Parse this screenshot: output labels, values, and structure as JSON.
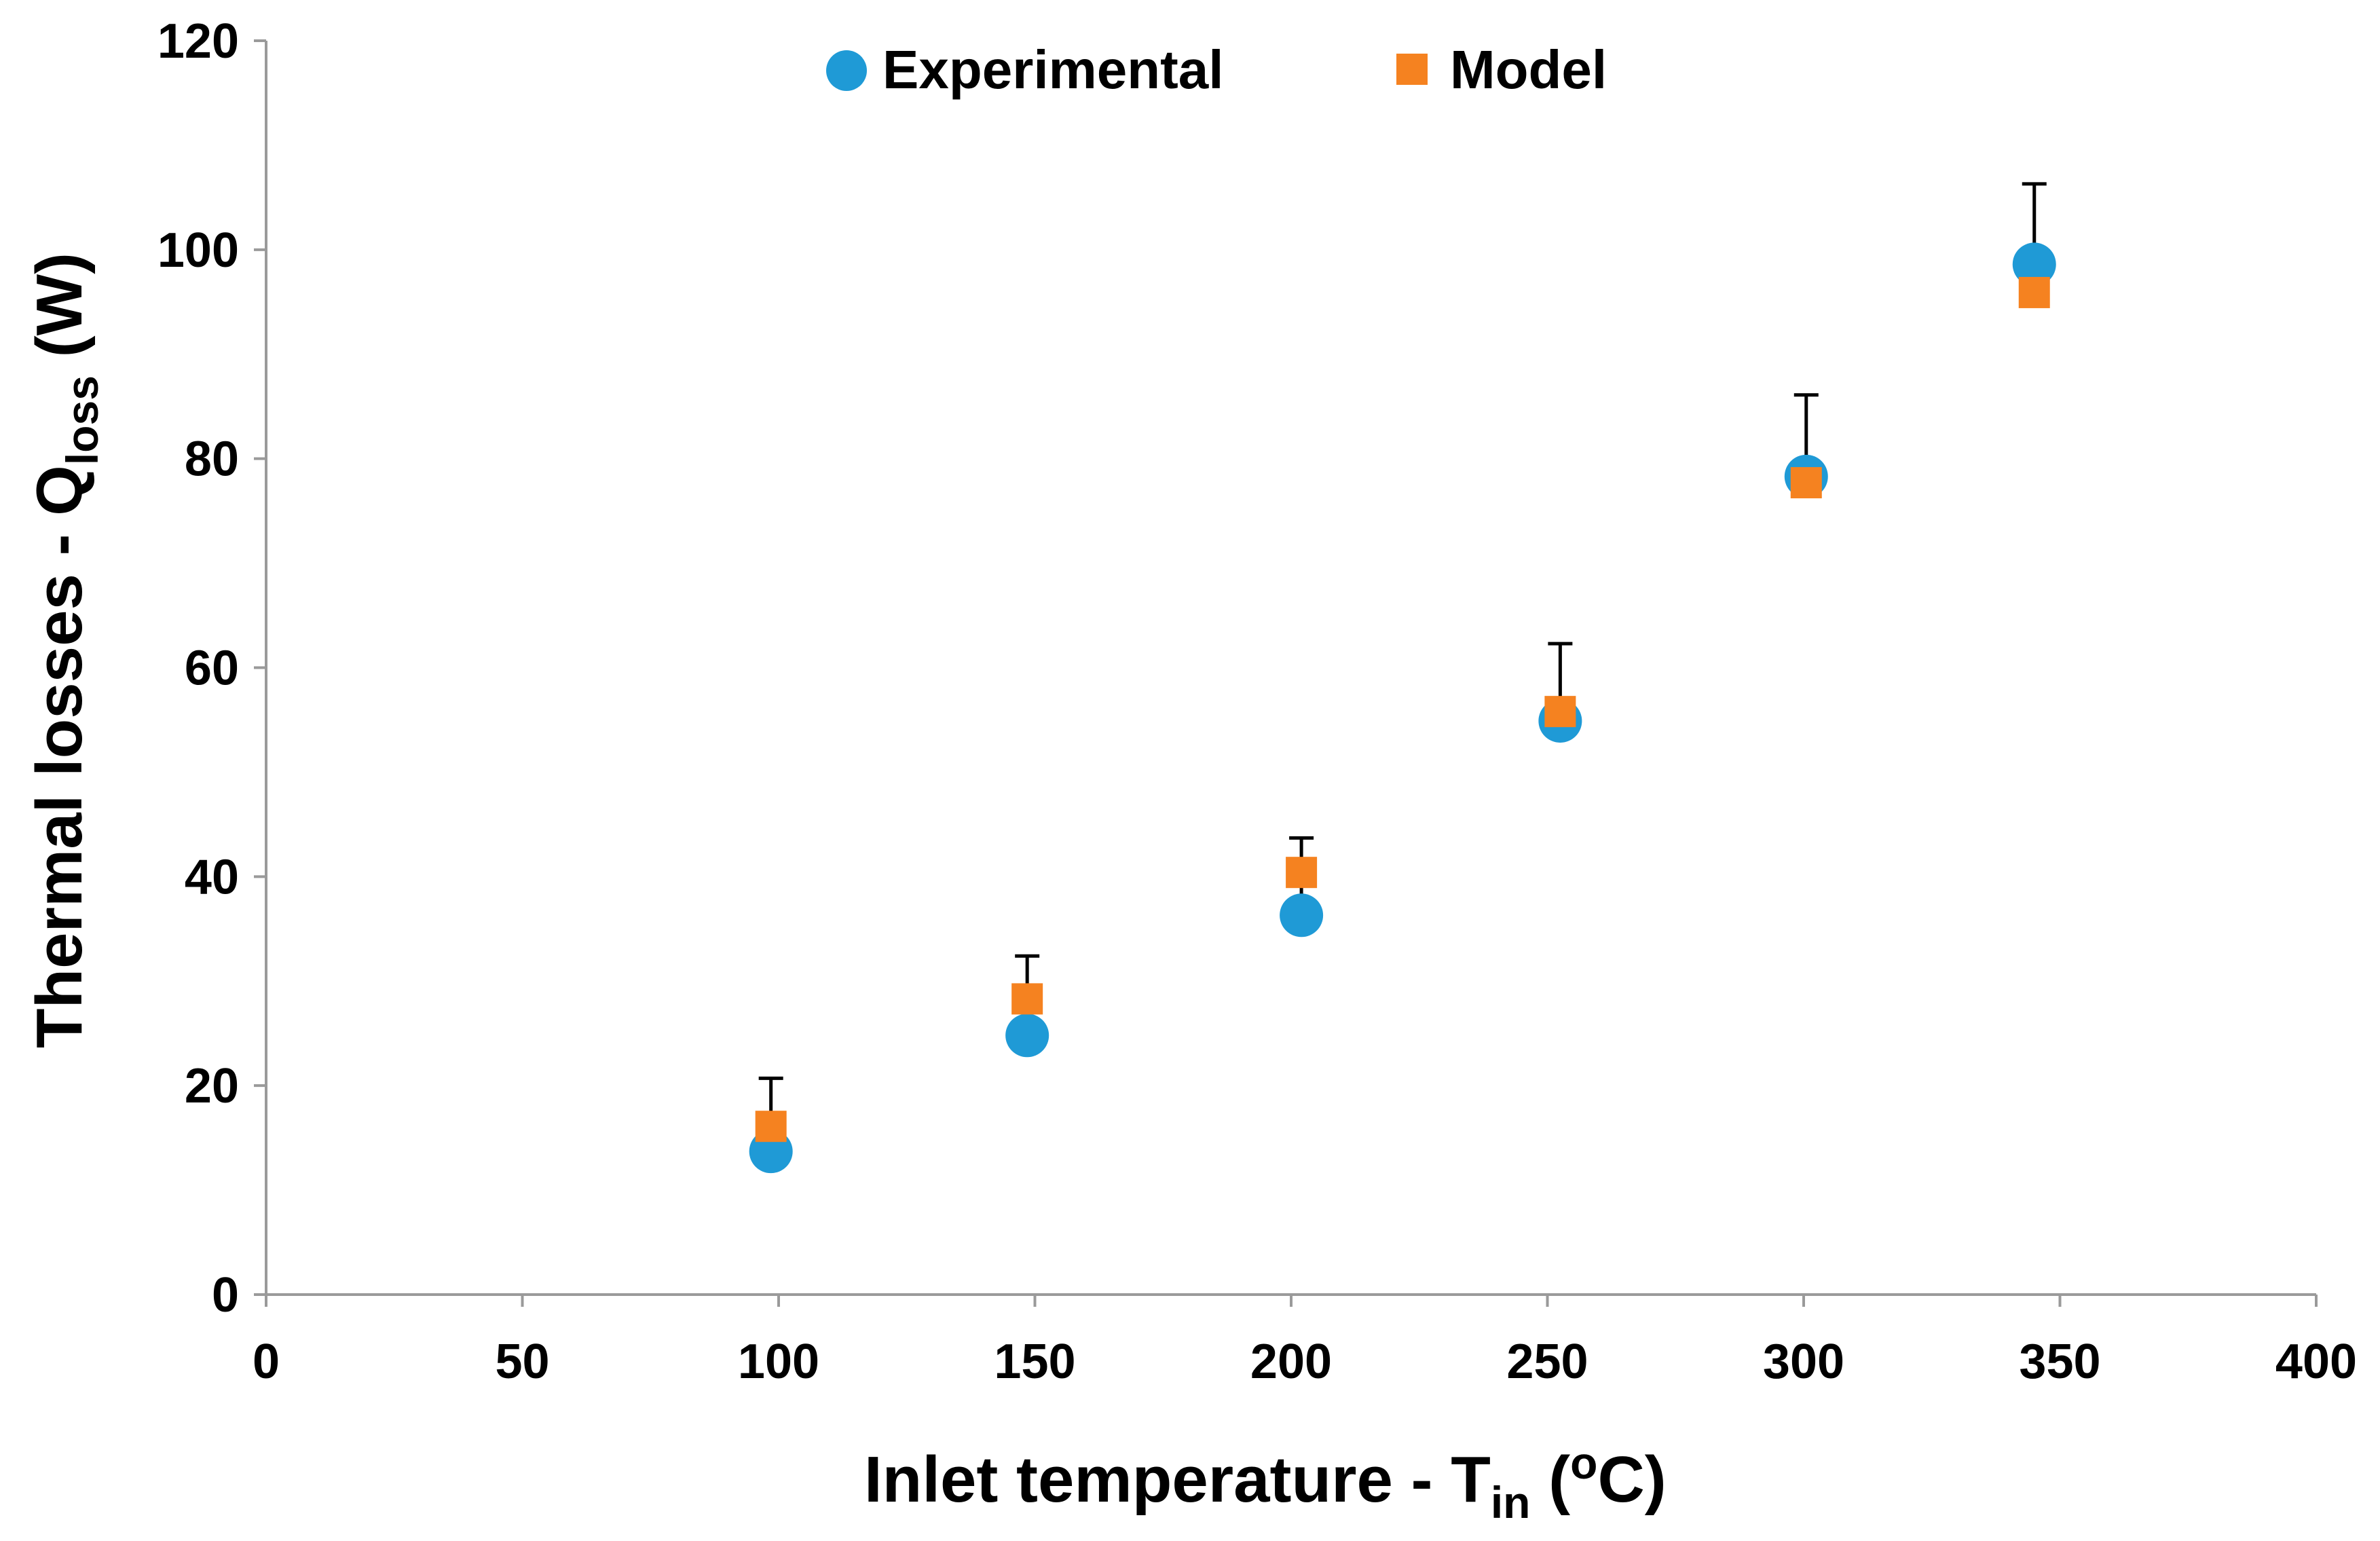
{
  "chart_data": {
    "type": "scatter",
    "title": "",
    "xlabel": {
      "main": "Inlet temperature - T",
      "sub": "in",
      "post_open": " (",
      "sup": "o",
      "post": "C)"
    },
    "ylabel": {
      "main": "Thermal losses - Q",
      "sub": "loss",
      "post": " (W)"
    },
    "xlim": [
      0,
      400
    ],
    "ylim": [
      0,
      120
    ],
    "xticks": [
      0,
      50,
      100,
      150,
      200,
      250,
      300,
      350,
      400
    ],
    "yticks": [
      0,
      20,
      40,
      60,
      80,
      100,
      120
    ],
    "grid": false,
    "legend_position": "top-center",
    "series": [
      {
        "name": "Experimental",
        "marker": "circle",
        "color": "#1f9ad6",
        "x": [
          98.5,
          148.5,
          202,
          252.5,
          300.5,
          345
        ],
        "y": [
          13.7,
          24.8,
          36.3,
          54.9,
          78.3,
          98.6
        ],
        "error_upper": [
          20.7,
          32.4,
          43.7,
          62.3,
          86.1,
          106.3
        ]
      },
      {
        "name": "Model",
        "marker": "square",
        "color": "#f58220",
        "x": [
          98.5,
          148.5,
          202,
          252.5,
          300.5,
          345
        ],
        "y": [
          16.1,
          28.3,
          40.4,
          55.8,
          77.7,
          95.9
        ]
      }
    ]
  }
}
